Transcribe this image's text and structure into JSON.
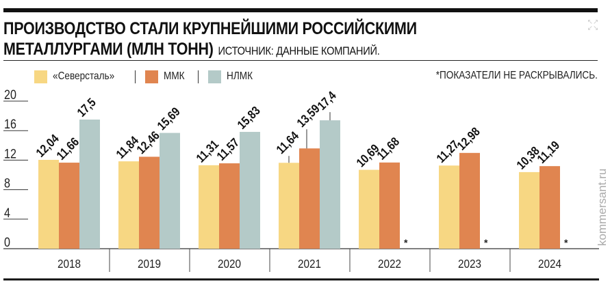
{
  "title_line1": "ПРОИЗВОДСТВО СТАЛИ КРУПНЕЙШИМИ РОССИЙСКИМИ",
  "title_line2": "МЕТАЛЛУРГАМИ (МЛН ТОНН)",
  "source": "ИСТОЧНИК: ДАННЫЕ КОМПАНИЙ.",
  "note": "*ПОКАЗАТЕЛИ НЕ РАСКРЫВАЛИСЬ.",
  "watermark": "kommersant.ru",
  "corner_icon": "expand-icon",
  "chart_data": {
    "type": "bar",
    "title": "ПРОИЗВОДСТВО СТАЛИ КРУПНЕЙШИМИ РОССИЙСКИМИ МЕТАЛЛУРГАМИ (МЛН ТОНН)",
    "categories": [
      "2018",
      "2019",
      "2020",
      "2021",
      "2022",
      "2023",
      "2024"
    ],
    "series": [
      {
        "name": "«Северсталь»",
        "color": "#f7d783",
        "values": [
          12.04,
          11.84,
          11.31,
          11.64,
          10.69,
          11.27,
          10.38
        ],
        "labels": [
          "12,04",
          "11,84",
          "11,31",
          "11,64",
          "10,69",
          "11,27",
          "10,38"
        ]
      },
      {
        "name": "ММК",
        "color": "#e08550",
        "values": [
          11.66,
          12.46,
          11.57,
          13.59,
          11.68,
          12.98,
          11.19
        ],
        "labels": [
          "11,66",
          "12,46",
          "11,57",
          "13,59",
          "11,68",
          "12,98",
          "11,19"
        ]
      },
      {
        "name": "НЛМК",
        "color": "#b4cac8",
        "values": [
          17.5,
          15.69,
          15.83,
          17.4,
          null,
          null,
          null
        ],
        "labels": [
          "17,5",
          "15,69",
          "15,83",
          "17,4",
          "*",
          "*",
          "*"
        ]
      }
    ],
    "yticks": [
      "0",
      "4",
      "8",
      "12",
      "16",
      "20"
    ],
    "ylim": [
      0,
      20
    ],
    "legend": "top-left",
    "grid": false
  }
}
